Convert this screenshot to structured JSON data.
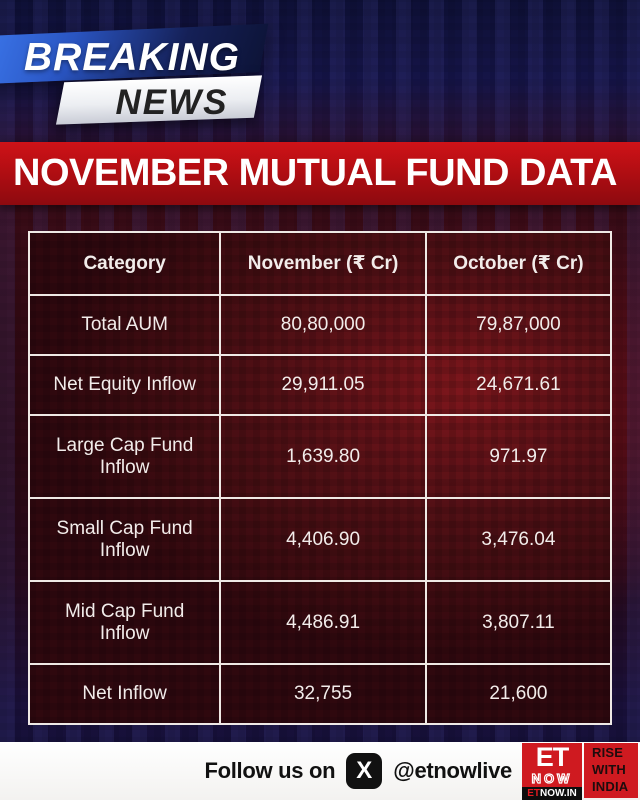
{
  "breaking_news": {
    "word1": "BREAKING",
    "word2": "NEWS"
  },
  "headline": "NOVEMBER MUTUAL FUND DATA",
  "table": {
    "headers": [
      "Category",
      "November (₹ Cr)",
      "October (₹ Cr)"
    ],
    "rows": [
      [
        "Total AUM",
        "80,80,000",
        "79,87,000"
      ],
      [
        "Net Equity Inflow",
        "29,911.05",
        "24,671.61"
      ],
      [
        "Large Cap Fund Inflow",
        "1,639.80",
        "971.97"
      ],
      [
        "Small Cap Fund Inflow",
        "4,406.90",
        "3,476.04"
      ],
      [
        "Mid Cap Fund Inflow",
        "4,486.91",
        "3,807.11"
      ],
      [
        "Net Inflow",
        "32,755",
        "21,600"
      ]
    ]
  },
  "chart_data": {
    "type": "table",
    "title": "November Mutual Fund Data",
    "columns": [
      "Category",
      "November (₹ Cr)",
      "October (₹ Cr)"
    ],
    "rows": [
      {
        "category": "Total AUM",
        "november_cr": "80,80,000",
        "october_cr": "79,87,000"
      },
      {
        "category": "Net Equity Inflow",
        "november_cr": 29911.05,
        "october_cr": 24671.61
      },
      {
        "category": "Large Cap Fund Inflow",
        "november_cr": 1639.8,
        "october_cr": 971.97
      },
      {
        "category": "Small Cap Fund Inflow",
        "november_cr": 4406.9,
        "october_cr": 3476.04
      },
      {
        "category": "Mid Cap Fund Inflow",
        "november_cr": 4486.91,
        "october_cr": 3807.11
      },
      {
        "category": "Net Inflow",
        "november_cr": 32755,
        "october_cr": 21600
      }
    ]
  },
  "footer": {
    "follow_text": "Follow us on",
    "x_glyph": "X",
    "handle": "@etnowlive",
    "logo": {
      "et": "ET",
      "now": "NOW",
      "strip_et": "ET",
      "strip_rest": "NOW.IN"
    },
    "slogan": [
      "RISE",
      "WITH",
      "INDIA"
    ]
  },
  "colors": {
    "banner_red": "#c51117",
    "logo_red": "#cf1a20",
    "background_navy": "#0f1138",
    "background_maroon": "#330a14",
    "table_border": "#efe9e5"
  }
}
